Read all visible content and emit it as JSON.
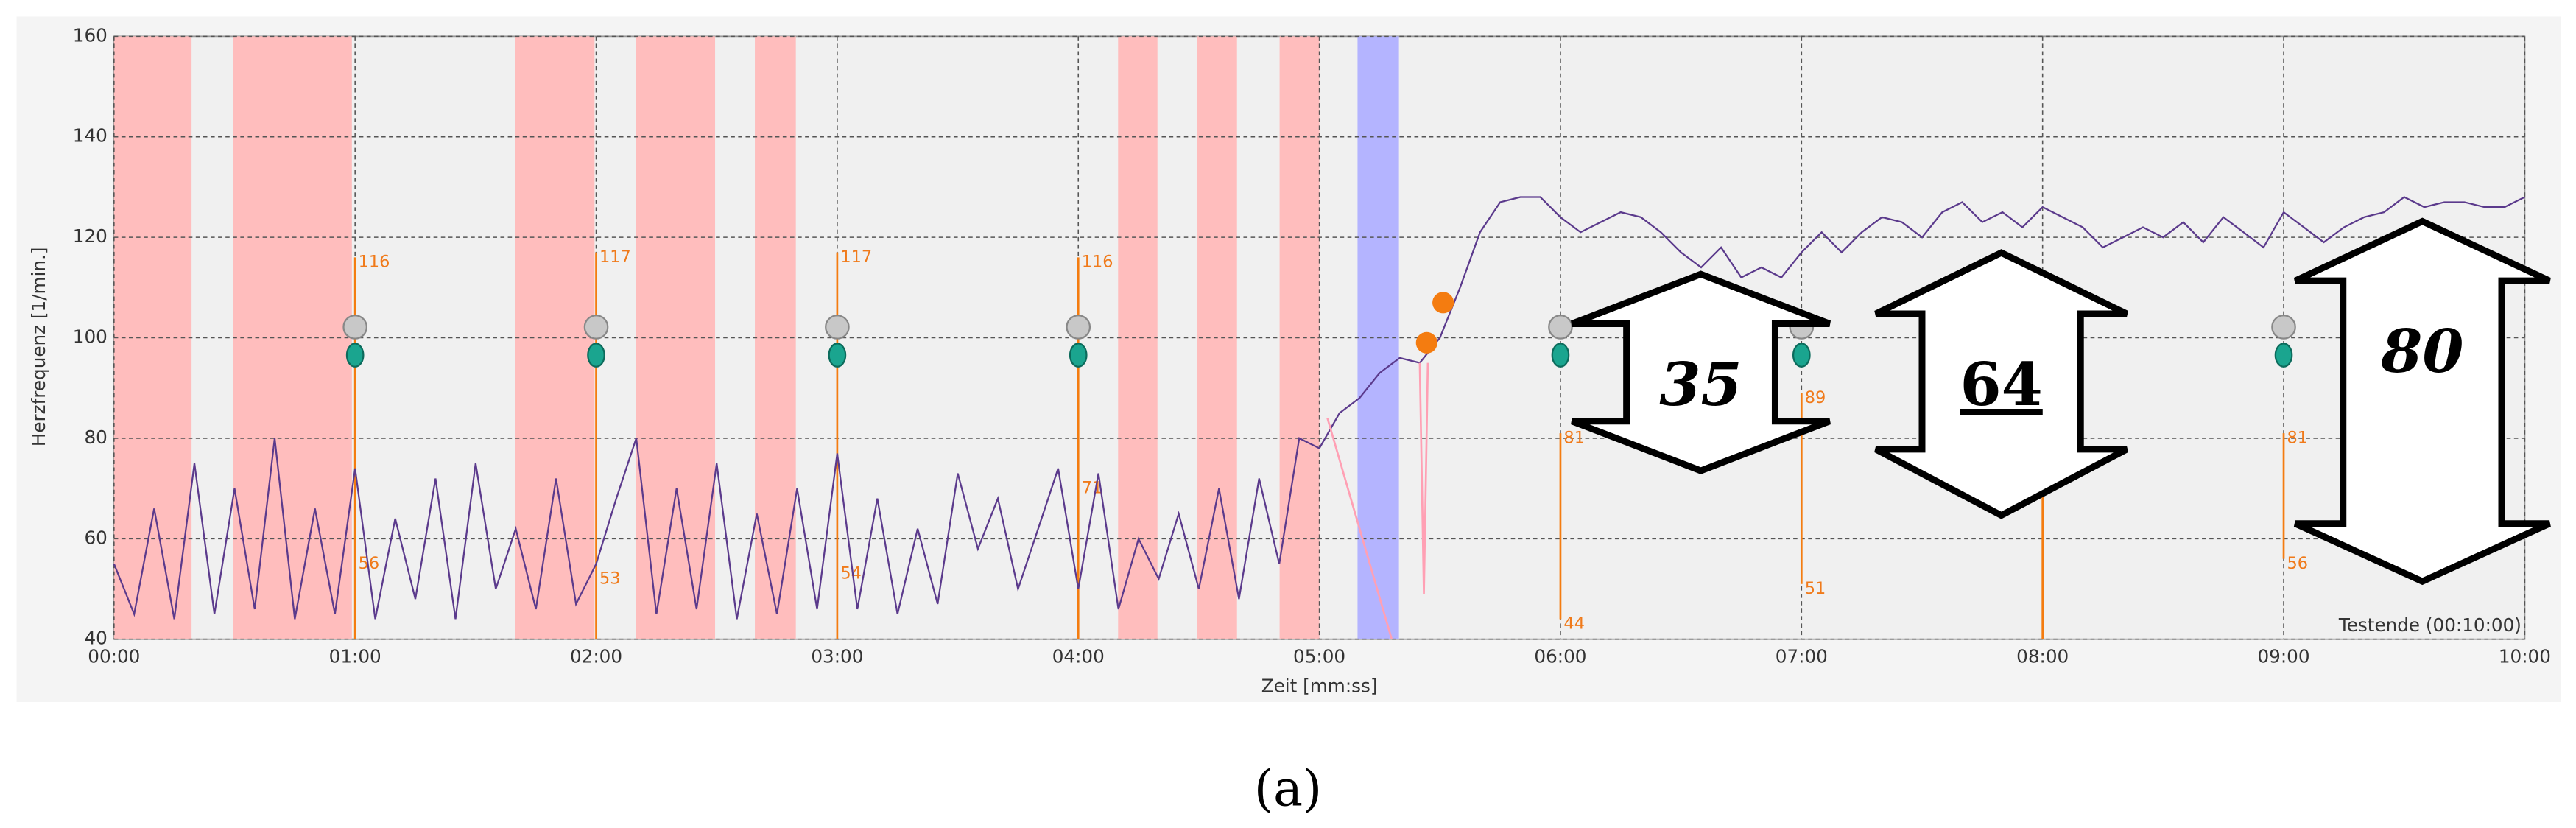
{
  "chart_data": {
    "type": "line",
    "ylabel": "Herzfrequenz [1/min.]",
    "xlabel": "Zeit [mm:ss]",
    "end_label": "Testende (00:10:00)",
    "caption": "(a)",
    "xlim": [
      0,
      600
    ],
    "ylim": [
      40,
      160
    ],
    "xticks": [
      {
        "value": 0,
        "label": "00:00"
      },
      {
        "value": 60,
        "label": "01:00"
      },
      {
        "value": 120,
        "label": "02:00"
      },
      {
        "value": 180,
        "label": "03:00"
      },
      {
        "value": 240,
        "label": "04:00"
      },
      {
        "value": 300,
        "label": "05:00"
      },
      {
        "value": 360,
        "label": "06:00"
      },
      {
        "value": 420,
        "label": "07:00"
      },
      {
        "value": 480,
        "label": "08:00"
      },
      {
        "value": 540,
        "label": "09:00"
      },
      {
        "value": 600,
        "label": "10:00"
      }
    ],
    "yticks": [
      40,
      60,
      80,
      100,
      120,
      140,
      160
    ],
    "grid": true,
    "bands": [
      {
        "start": 0,
        "end": 19.3,
        "color": "#ffbdbd"
      },
      {
        "start": 29.6,
        "end": 59.2,
        "color": "#ffbdbd"
      },
      {
        "start": 99.9,
        "end": 119.6,
        "color": "#ffbdbd"
      },
      {
        "start": 129.9,
        "end": 149.6,
        "color": "#ffbdbd"
      },
      {
        "start": 159.5,
        "end": 169.7,
        "color": "#ffbdbd"
      },
      {
        "start": 249.9,
        "end": 259.7,
        "color": "#ffbdbd"
      },
      {
        "start": 269.6,
        "end": 279.5,
        "color": "#ffbdbd"
      },
      {
        "start": 290.1,
        "end": 300,
        "color": "#ffbdbd"
      },
      {
        "start": 309.5,
        "end": 319.8,
        "color": "#b4b4ff"
      }
    ],
    "series": [
      {
        "color": "#5b3a8c",
        "x": [
          0,
          5,
          10,
          15,
          20,
          25,
          30,
          35,
          40,
          45,
          50,
          55,
          60,
          65,
          70,
          75,
          80,
          85,
          90,
          95,
          100,
          105,
          110,
          115,
          120,
          125,
          130,
          135,
          140,
          145,
          150,
          155,
          160,
          165,
          170,
          175,
          180,
          185,
          190,
          195,
          200,
          205,
          210,
          215,
          220,
          225,
          230,
          235,
          240,
          245,
          250,
          255,
          260,
          265,
          270,
          275,
          280,
          285,
          290,
          295,
          300,
          305,
          310,
          315,
          320,
          325,
          330,
          335,
          340,
          345,
          350,
          355,
          360,
          365,
          370,
          375,
          380,
          385,
          390,
          395,
          400,
          405,
          410,
          415,
          420,
          425,
          430,
          435,
          440,
          445,
          450,
          455,
          460,
          465,
          470,
          475,
          480,
          485,
          490,
          495,
          500,
          505,
          510,
          515,
          520,
          525,
          530,
          535,
          540,
          545,
          550,
          555,
          560,
          565,
          570,
          575,
          580,
          585,
          590,
          595,
          600
        ],
        "values": [
          55,
          45,
          66,
          44,
          75,
          45,
          70,
          46,
          80,
          44,
          66,
          45,
          74,
          44,
          64,
          48,
          72,
          44,
          75,
          50,
          62,
          46,
          72,
          47,
          55,
          68,
          80,
          45,
          70,
          46,
          75,
          44,
          65,
          45,
          70,
          46,
          77,
          46,
          68,
          45,
          62,
          47,
          73,
          58,
          68,
          50,
          62,
          74,
          50,
          73,
          46,
          60,
          52,
          65,
          50,
          70,
          48,
          72,
          55,
          80,
          78,
          85,
          88,
          93,
          96,
          95,
          100,
          110,
          121,
          127,
          128,
          128,
          124,
          121,
          123,
          125,
          124,
          121,
          117,
          114,
          118,
          112,
          114,
          112,
          117,
          121,
          117,
          121,
          124,
          123,
          120,
          125,
          127,
          123,
          125,
          122,
          126,
          124,
          122,
          118,
          120,
          122,
          120,
          123,
          119,
          124,
          121,
          118,
          125,
          122,
          119,
          122,
          124,
          125,
          128,
          126,
          127,
          127,
          126,
          126,
          128
        ]
      },
      {
        "color": "#ffa0b4",
        "x": [
          302,
          318,
          319,
          325,
          326,
          327
        ],
        "values": [
          84,
          40,
          null,
          95,
          49,
          95
        ]
      }
    ],
    "events": {
      "color": "#f47c10",
      "x": [
        326.7,
        330.8
      ],
      "values": [
        99,
        107
      ]
    },
    "marker_color": "#f47c10",
    "markers": [
      {
        "x": 60,
        "line": [
          116,
          40
        ],
        "labels": [
          116,
          56
        ],
        "icon": true
      },
      {
        "x": 120,
        "line": [
          117,
          40
        ],
        "labels": [
          117,
          53
        ],
        "icon": true
      },
      {
        "x": 180,
        "line": [
          117,
          40
        ],
        "labels": [
          117,
          54
        ],
        "icon": true
      },
      {
        "x": 240,
        "line": [
          116,
          40
        ],
        "labels": [
          116,
          71
        ],
        "icon": true
      },
      {
        "x": 360,
        "line": [
          81,
          44
        ],
        "labels": [
          81,
          44
        ],
        "icon": true
      },
      {
        "x": 420,
        "line": [
          89,
          51
        ],
        "labels": [
          89,
          51
        ],
        "icon": true
      },
      {
        "x": 480,
        "line": [
          72,
          40
        ],
        "labels": [],
        "icon": false
      },
      {
        "x": 540,
        "line": [
          81,
          56
        ],
        "labels": [
          81,
          56
        ],
        "icon": true
      }
    ],
    "annotations": [
      "35",
      "64",
      "80"
    ]
  }
}
